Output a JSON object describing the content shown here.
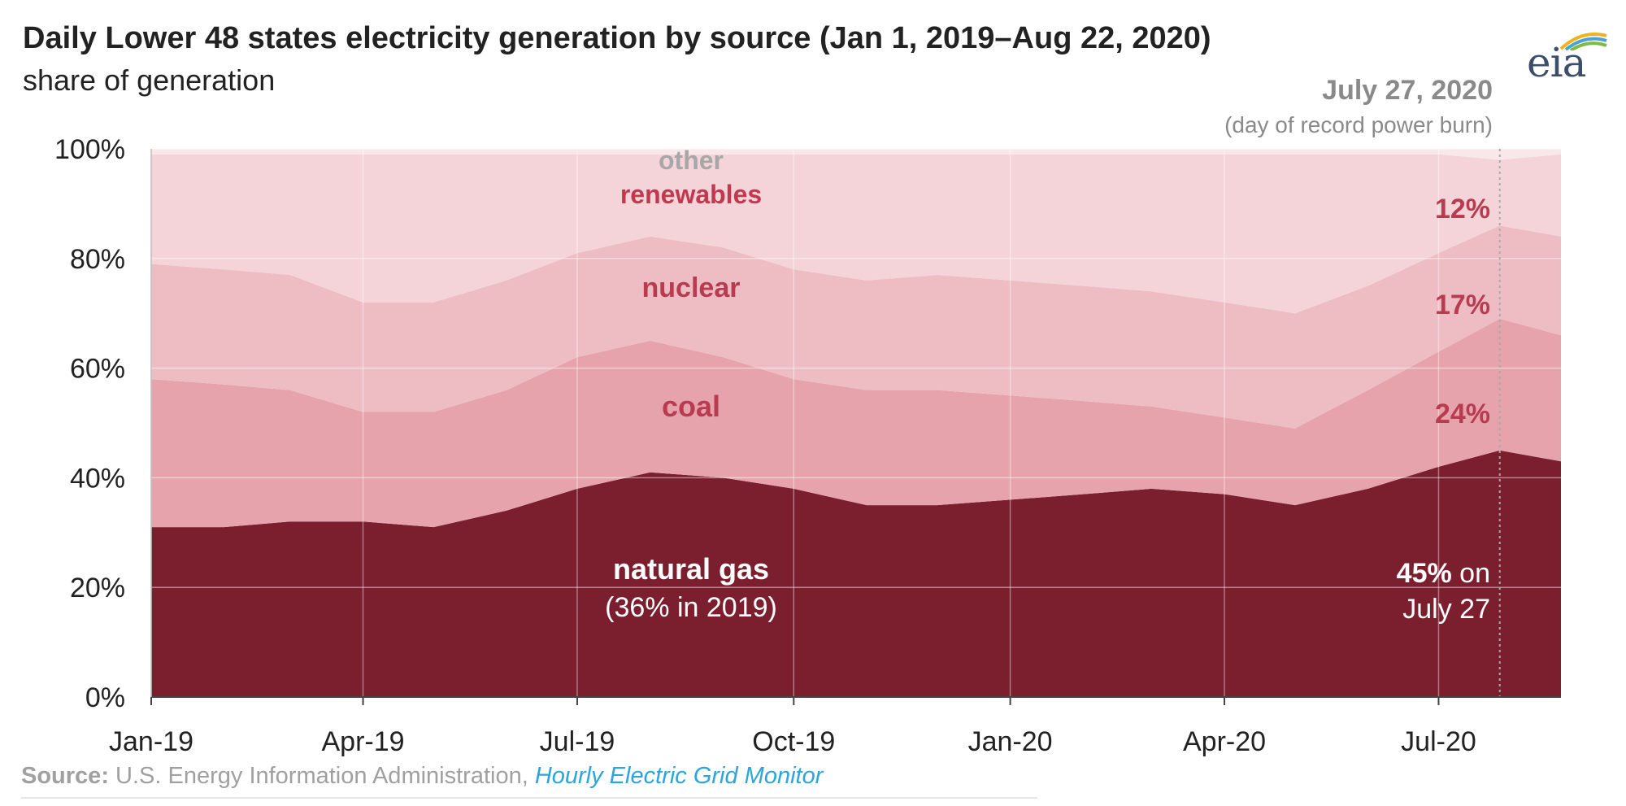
{
  "header": {
    "title": "Daily Lower 48 states electricity generation by source (Jan 1, 2019–Aug 22, 2020)",
    "subtitle": "share of generation",
    "logo_text": "eia"
  },
  "annotation": {
    "date": "July 27, 2020",
    "note": "(day of record power burn)"
  },
  "source": {
    "label": "Source:",
    "text": " U.S. Energy Information Administration, ",
    "link": "Hourly Electric Grid Monitor"
  },
  "chart_data": {
    "type": "area",
    "stacked": true,
    "ylabel_ticks": [
      "0%",
      "20%",
      "40%",
      "60%",
      "80%",
      "100%"
    ],
    "ylim": [
      0,
      100
    ],
    "x_tick_labels": [
      "Jan-19",
      "Apr-19",
      "Jul-19",
      "Oct-19",
      "Jan-20",
      "Apr-20",
      "Jul-20"
    ],
    "x_tick_dates": [
      "2019-01-01",
      "2019-04-01",
      "2019-07-01",
      "2019-10-01",
      "2020-01-01",
      "2020-04-01",
      "2020-07-01"
    ],
    "x_range": [
      "2019-01-01",
      "2020-08-22"
    ],
    "marker_date": "2020-07-27",
    "grid": true,
    "colors": {
      "natural_gas": "#7b1f2e",
      "coal": "#e7a3ab",
      "nuclear": "#eebdc3",
      "renewables": "#f4d4d8",
      "other": "#f9e8ea"
    },
    "series": [
      {
        "key": "natural_gas",
        "name": "natural gas",
        "note": "(36% in 2019)",
        "x": [
          "2019-01-01",
          "2019-02-01",
          "2019-03-01",
          "2019-04-01",
          "2019-05-01",
          "2019-06-01",
          "2019-07-01",
          "2019-08-01",
          "2019-09-01",
          "2019-10-01",
          "2019-11-01",
          "2019-12-01",
          "2020-01-01",
          "2020-02-01",
          "2020-03-01",
          "2020-04-01",
          "2020-05-01",
          "2020-06-01",
          "2020-07-01",
          "2020-07-27",
          "2020-08-22"
        ],
        "values": [
          31,
          31,
          32,
          32,
          31,
          34,
          38,
          41,
          40,
          38,
          35,
          35,
          36,
          37,
          38,
          37,
          35,
          38,
          42,
          45,
          43
        ]
      },
      {
        "key": "coal",
        "name": "coal",
        "label": "24%",
        "x": [
          "2019-01-01",
          "2019-02-01",
          "2019-03-01",
          "2019-04-01",
          "2019-05-01",
          "2019-06-01",
          "2019-07-01",
          "2019-08-01",
          "2019-09-01",
          "2019-10-01",
          "2019-11-01",
          "2019-12-01",
          "2020-01-01",
          "2020-02-01",
          "2020-03-01",
          "2020-04-01",
          "2020-05-01",
          "2020-06-01",
          "2020-07-01",
          "2020-07-27",
          "2020-08-22"
        ],
        "values": [
          27,
          26,
          24,
          20,
          21,
          22,
          24,
          24,
          22,
          20,
          21,
          21,
          19,
          17,
          15,
          14,
          14,
          18,
          21,
          24,
          23
        ]
      },
      {
        "key": "nuclear",
        "name": "nuclear",
        "label": "17%",
        "x": [
          "2019-01-01",
          "2019-02-01",
          "2019-03-01",
          "2019-04-01",
          "2019-05-01",
          "2019-06-01",
          "2019-07-01",
          "2019-08-01",
          "2019-09-01",
          "2019-10-01",
          "2019-11-01",
          "2019-12-01",
          "2020-01-01",
          "2020-02-01",
          "2020-03-01",
          "2020-04-01",
          "2020-05-01",
          "2020-06-01",
          "2020-07-01",
          "2020-07-27",
          "2020-08-22"
        ],
        "values": [
          21,
          21,
          21,
          20,
          20,
          20,
          19,
          19,
          20,
          20,
          20,
          21,
          21,
          21,
          21,
          21,
          21,
          19,
          18,
          17,
          18
        ]
      },
      {
        "key": "renewables",
        "name": "renewables",
        "label": "12%",
        "x": [
          "2019-01-01",
          "2019-02-01",
          "2019-03-01",
          "2019-04-01",
          "2019-05-01",
          "2019-06-01",
          "2019-07-01",
          "2019-08-01",
          "2019-09-01",
          "2019-10-01",
          "2019-11-01",
          "2019-12-01",
          "2020-01-01",
          "2020-02-01",
          "2020-03-01",
          "2020-04-01",
          "2020-05-01",
          "2020-06-01",
          "2020-07-01",
          "2020-07-27",
          "2020-08-22"
        ],
        "values": [
          20,
          21,
          22,
          27,
          27,
          23,
          18,
          15,
          17,
          21,
          23,
          22,
          23,
          24,
          25,
          27,
          29,
          24,
          18,
          12,
          15
        ]
      },
      {
        "key": "other",
        "name": "other",
        "x": [
          "2019-01-01",
          "2019-02-01",
          "2019-03-01",
          "2019-04-01",
          "2019-05-01",
          "2019-06-01",
          "2019-07-01",
          "2019-08-01",
          "2019-09-01",
          "2019-10-01",
          "2019-11-01",
          "2019-12-01",
          "2020-01-01",
          "2020-02-01",
          "2020-03-01",
          "2020-04-01",
          "2020-05-01",
          "2020-06-01",
          "2020-07-01",
          "2020-07-27",
          "2020-08-22"
        ],
        "values": [
          1,
          1,
          1,
          1,
          1,
          1,
          1,
          1,
          1,
          1,
          1,
          1,
          1,
          1,
          1,
          1,
          1,
          1,
          1,
          2,
          1
        ]
      }
    ],
    "callout": {
      "value": "45%",
      "suffix": " on",
      "date_text": "July 27"
    }
  }
}
